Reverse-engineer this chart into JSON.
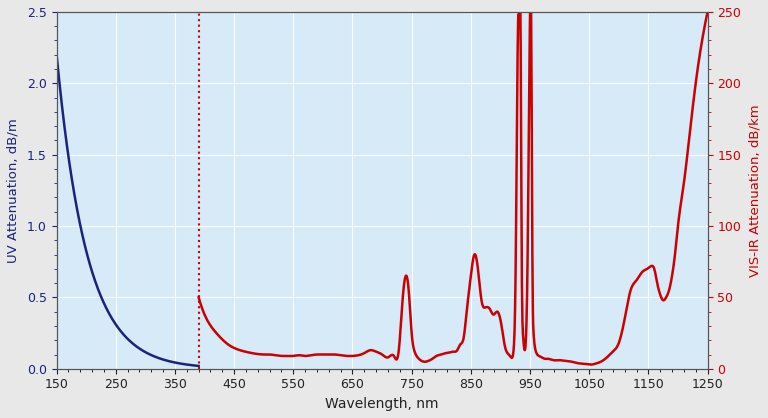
{
  "title": "",
  "xlabel": "Wavelength, nm",
  "ylabel_left": "UV Attenuation, dB/m",
  "ylabel_right": "VIS-IR Attenuation, dB/km",
  "xlim": [
    150,
    1250
  ],
  "ylim_left": [
    0.0,
    2.5
  ],
  "ylim_right": [
    0,
    250
  ],
  "yticks_left": [
    0.0,
    0.5,
    1.0,
    1.5,
    2.0,
    2.5
  ],
  "yticks_right": [
    0,
    50,
    100,
    150,
    200,
    250
  ],
  "xticks": [
    150,
    250,
    350,
    450,
    550,
    650,
    750,
    850,
    950,
    1050,
    1150,
    1250
  ],
  "background_color": "#d6eaf8",
  "plot_bg_color": "#d6eaf8",
  "uv_color": "#1a237e",
  "vis_color": "#cc0000",
  "dotted_line_color": "#cc0000",
  "dotted_line_x": 390,
  "outer_bg": "#e8e8e8",
  "label_color_left": "#1a237e",
  "label_color_right": "#cc0000",
  "tick_color_left": "#1a237e",
  "tick_color_right": "#cc0000"
}
